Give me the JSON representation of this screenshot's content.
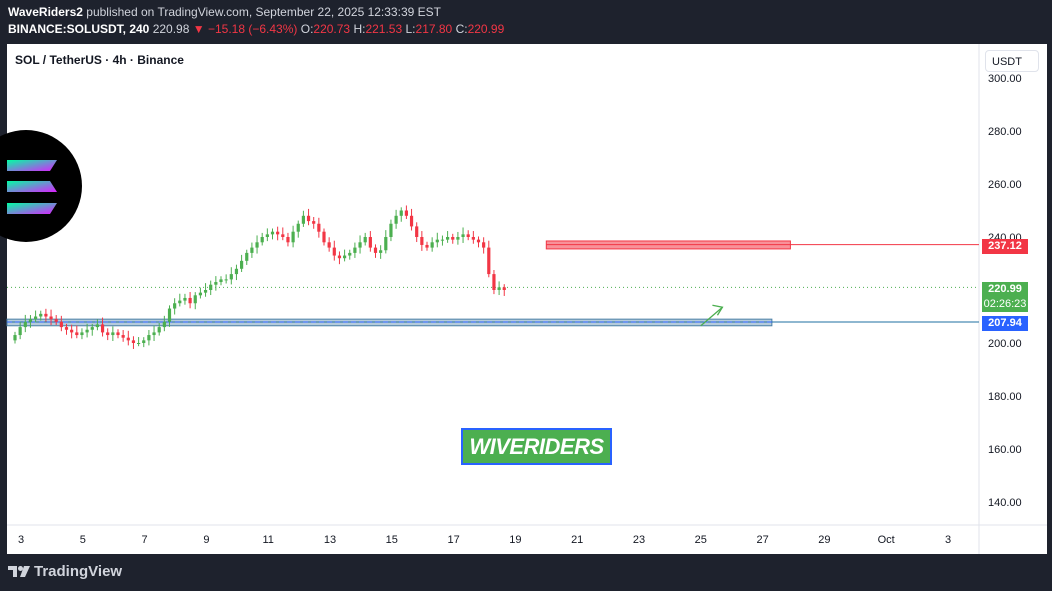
{
  "header": {
    "publisher": "WaveRiders2",
    "published_text": "published on TradingView.com, September 22, 2025 12:33:39 EST",
    "symbol_line": "BINANCE:SOLUSDT, 240",
    "last": "220.98",
    "change": "−15.18 (−6.43%)",
    "o_label": "O:",
    "o_val": "220.73",
    "h_label": "H:",
    "h_val": "221.53",
    "l_label": "L:",
    "l_val": "217.80",
    "c_label": "C:",
    "c_val": "220.99"
  },
  "legend_title": "SOL / TetherUS · 4h · Binance",
  "currency": "USDT",
  "watermark": "WIVERIDERS",
  "footer_logo": "TradingView",
  "price_labels": {
    "resistance": "237.12",
    "current": "220.99",
    "countdown": "02:26:23",
    "support": "207.94"
  },
  "colors": {
    "up": "#26a69a",
    "up_green": "#4caf50",
    "down": "#f23645",
    "resistance": "#f23645",
    "support": "#2962ff"
  },
  "chart_data": {
    "type": "candlestick",
    "title": "SOL / TetherUS · 4h · Binance",
    "ylim": [
      130,
      305
    ],
    "y_ticks": [
      140,
      160,
      180,
      200,
      220,
      240,
      260,
      280,
      300
    ],
    "y_tick_labels": [
      "140.00",
      "160.00",
      "180.00",
      "200.00",
      "220.00",
      "240.00",
      "260.00",
      "280.00",
      "300.00"
    ],
    "x_tick_labels": [
      "3",
      "5",
      "7",
      "9",
      "11",
      "13",
      "15",
      "17",
      "19",
      "21",
      "23",
      "25",
      "27",
      "29",
      "Oct",
      "3"
    ],
    "x_tick_days": [
      3,
      5,
      7,
      9,
      11,
      13,
      15,
      17,
      19,
      21,
      23,
      25,
      27,
      29,
      31,
      33
    ],
    "candles_per_day": 6,
    "first_candle_day": 3,
    "closes": [
      203,
      206,
      208,
      209,
      210,
      211,
      210,
      209,
      208,
      206,
      205,
      204,
      203,
      204,
      205,
      206,
      207,
      204,
      203,
      204,
      203,
      202,
      201,
      200,
      200,
      201,
      203,
      204,
      206,
      208,
      213,
      215,
      216,
      217,
      215,
      218,
      219,
      220,
      222,
      223,
      224,
      224,
      226,
      228,
      231,
      234,
      236,
      238,
      240,
      241,
      242,
      241,
      240,
      238,
      242,
      245,
      248,
      246,
      245,
      242,
      238,
      236,
      233,
      232,
      233,
      234,
      236,
      238,
      240,
      236,
      234,
      235,
      240,
      245,
      248,
      250,
      248,
      244,
      240,
      237,
      236,
      238,
      239,
      239,
      240,
      239,
      240,
      241,
      240,
      239,
      238,
      236,
      226,
      220,
      221,
      220
    ],
    "resistance_zone": {
      "level": 237.12,
      "low": 235.5,
      "high": 238.5,
      "start_day": 20.0,
      "end_day": 27.9
    },
    "support_zone": {
      "level": 207.94,
      "low": 206.5,
      "high": 209.0,
      "start_day": 2.5,
      "end_day": 27.3
    },
    "current_price": 220.99,
    "projection_arrow": {
      "from": [
        25.0,
        206.5
      ],
      "to": [
        25.7,
        213.5
      ]
    }
  }
}
